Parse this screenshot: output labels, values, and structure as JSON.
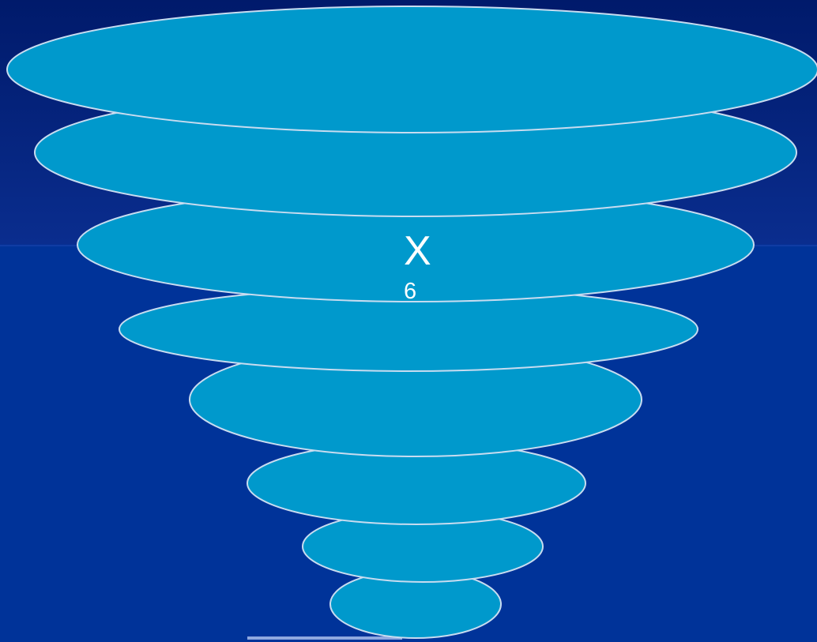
{
  "diagram": {
    "main_label": "X",
    "sub_label": "6",
    "layer_count": 8
  },
  "colors": {
    "background_top": "#001a6b",
    "background_mid": "#0a2d8e",
    "background_bottom": "#003399",
    "ellipse_fill": "#0099cc",
    "ellipse_stroke": "#c8dcf0",
    "accent_bar": "#8fa8e0",
    "text": "#ffffff"
  }
}
